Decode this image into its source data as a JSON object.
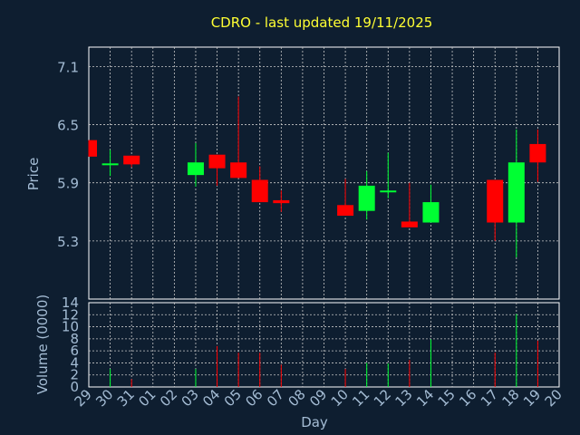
{
  "chart_data": [
    {
      "type": "candlestick",
      "title": "CDRO - last updated 19/11/2025",
      "ylabel": "Price",
      "ylim": [
        4.7,
        7.3
      ],
      "yticks": [
        "7.1",
        "6.5",
        "5.9",
        "5.3"
      ],
      "grid": true,
      "colors": {
        "up": "#00ff33",
        "down": "#ff0000",
        "grid": "#c8c8c8",
        "title": "#ffff33",
        "text": "#a4bcd4"
      },
      "x": [
        "29",
        "30",
        "31",
        "01",
        "02",
        "03",
        "04",
        "05",
        "06",
        "07",
        "08",
        "09",
        "10",
        "11",
        "12",
        "13",
        "14",
        "15",
        "16",
        "17",
        "18",
        "19",
        "20"
      ],
      "candles": [
        {
          "day": "29",
          "open": 6.34,
          "close": 6.17,
          "high": 6.34,
          "low": 6.17
        },
        {
          "day": "30",
          "open": 6.09,
          "close": 6.1,
          "high": 6.24,
          "low": 5.97
        },
        {
          "day": "31",
          "open": 6.18,
          "close": 6.09,
          "high": 6.18,
          "low": 6.06
        },
        {
          "day": "03",
          "open": 5.98,
          "close": 6.11,
          "high": 6.31,
          "low": 5.86
        },
        {
          "day": "04",
          "open": 6.19,
          "close": 6.05,
          "high": 6.19,
          "low": 5.87
        },
        {
          "day": "05",
          "open": 6.11,
          "close": 5.95,
          "high": 6.79,
          "low": 5.95
        },
        {
          "day": "06",
          "open": 5.93,
          "close": 5.7,
          "high": 6.07,
          "low": 5.7
        },
        {
          "day": "07",
          "open": 5.72,
          "close": 5.69,
          "high": 5.82,
          "low": 5.6
        },
        {
          "day": "10",
          "open": 5.67,
          "close": 5.56,
          "high": 5.94,
          "low": 5.56
        },
        {
          "day": "11",
          "open": 5.61,
          "close": 5.87,
          "high": 6.02,
          "low": 5.52
        },
        {
          "day": "12",
          "open": 5.81,
          "close": 5.82,
          "high": 6.21,
          "low": 5.74
        },
        {
          "day": "13",
          "open": 5.5,
          "close": 5.44,
          "high": 5.9,
          "low": 5.44
        },
        {
          "day": "14",
          "open": 5.49,
          "close": 5.7,
          "high": 5.88,
          "low": 5.49
        },
        {
          "day": "17",
          "open": 5.93,
          "close": 5.49,
          "high": 5.93,
          "low": 5.3
        },
        {
          "day": "18",
          "open": 5.49,
          "close": 6.11,
          "high": 6.45,
          "low": 5.13
        },
        {
          "day": "19",
          "open": 6.3,
          "close": 6.11,
          "high": 6.45,
          "low": 5.91
        }
      ]
    },
    {
      "type": "bar",
      "ylabel": "Volume (0000)",
      "xlabel": "Day",
      "ylim": [
        0,
        14
      ],
      "yticks": [
        "14",
        "12",
        "10",
        "8",
        "6",
        "4",
        "2",
        "0"
      ],
      "grid": true,
      "categories": [
        "29",
        "30",
        "31",
        "01",
        "02",
        "03",
        "04",
        "05",
        "06",
        "07",
        "08",
        "09",
        "10",
        "11",
        "12",
        "13",
        "14",
        "15",
        "16",
        "17",
        "18",
        "19",
        "20"
      ],
      "values": [
        0,
        3.0,
        1.3,
        0,
        0,
        3.0,
        6.8,
        5.7,
        5.7,
        3.7,
        0,
        0,
        3.0,
        4.0,
        3.9,
        4.5,
        7.9,
        0,
        0,
        5.7,
        12.1,
        7.7,
        0
      ],
      "direction": [
        "",
        "up",
        "down",
        "",
        "",
        "up",
        "down",
        "down",
        "down",
        "down",
        "",
        "",
        "down",
        "up",
        "up",
        "down",
        "up",
        "",
        "",
        "down",
        "up",
        "down",
        ""
      ]
    }
  ]
}
